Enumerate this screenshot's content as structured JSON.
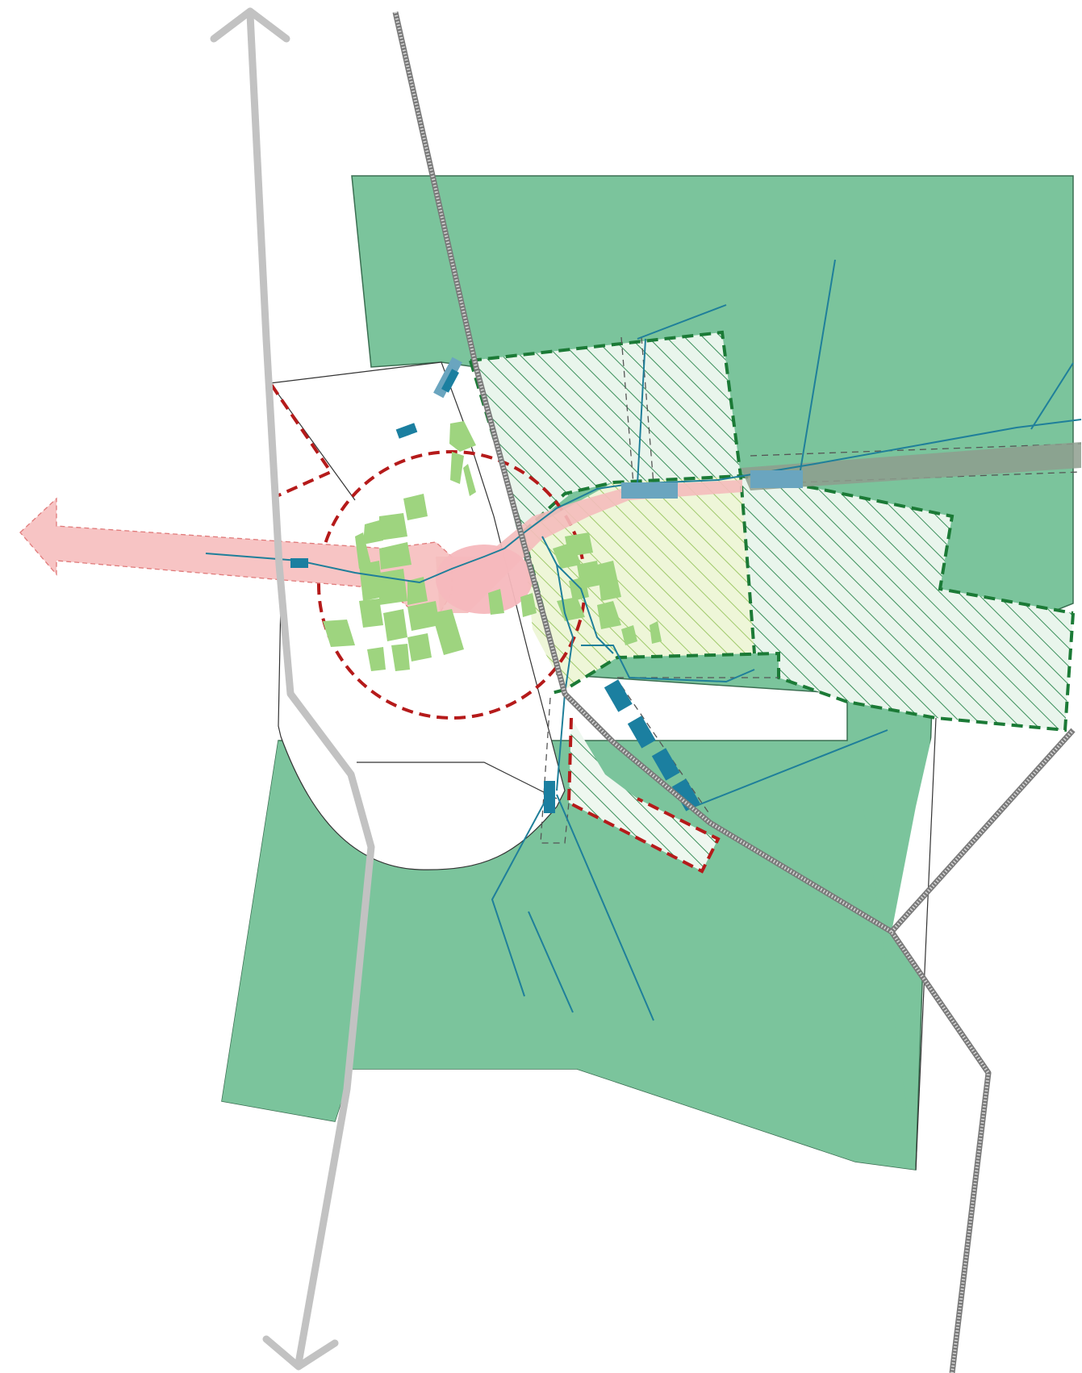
{
  "map": {
    "colors": {
      "forest_green": "#7bc49c",
      "forest_border": "#2f6b4a",
      "hatch_green": "#2f8a4f",
      "dashed_green": "#1f7a3a",
      "dashed_red": "#b51a1a",
      "road_gray": "#c4c4c4",
      "railway_gray": "#7f7f7f",
      "stream_blue": "#1f7f9a",
      "water_blue": "#1b7fa0",
      "light_blue": "#6aa5bf",
      "settlement_light_green": "#9ed47f",
      "pink_axis": "#f7c0c0",
      "corridor_gray": "#8a9a8a"
    },
    "elements": [
      "north-south-road-arrow",
      "west-development-axis-arrow",
      "railway-line",
      "forest-area",
      "settlement-white-area",
      "hatched-planning-zones",
      "red-dashed-boundaries",
      "streams",
      "water-structures",
      "settlement-blocks"
    ]
  }
}
